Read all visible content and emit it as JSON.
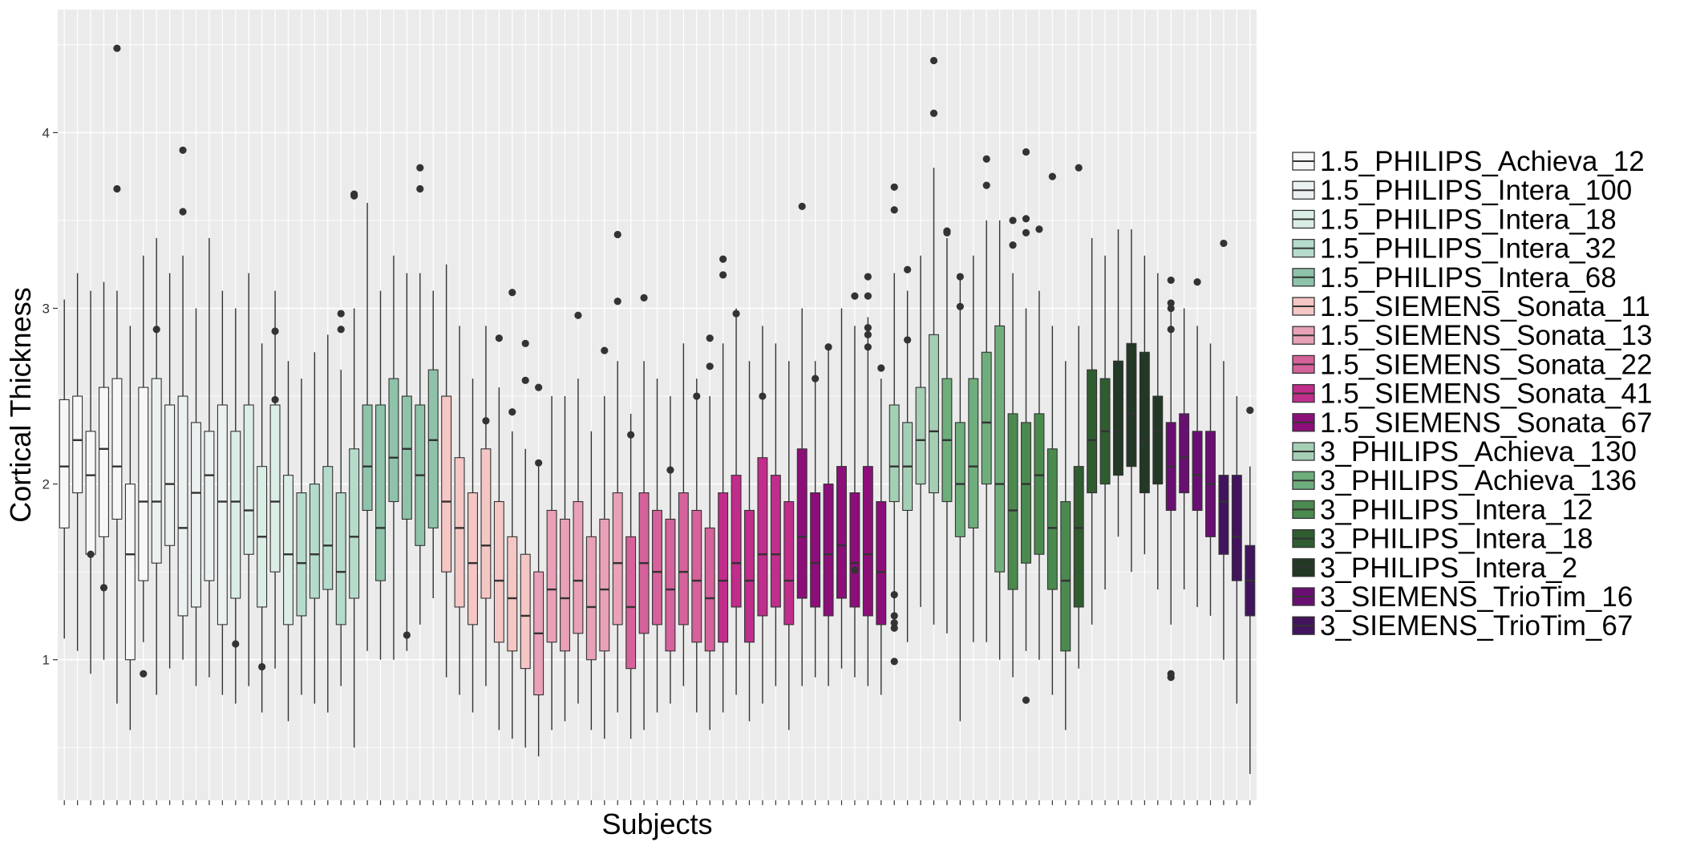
{
  "chart_data": {
    "type": "boxplot",
    "title": "",
    "xlabel": "Subjects",
    "ylabel": "Cortical Thickness",
    "ylim": [
      0.2,
      4.7
    ],
    "yticks": [
      1,
      2,
      3,
      4
    ],
    "x_tick_labels_shown": false,
    "grid": true,
    "legend_position": "right",
    "series": [
      {
        "name": "1.5_PHILIPS_Achieva_12",
        "color": "#f7f7f7",
        "boxes": [
          {
            "lo": 1.12,
            "q1": 1.75,
            "med": 2.1,
            "q3": 2.48,
            "hi": 3.05
          },
          {
            "lo": 1.05,
            "q1": 1.95,
            "med": 2.25,
            "q3": 2.5,
            "hi": 3.2
          },
          {
            "lo": 0.92,
            "q1": 1.6,
            "med": 2.05,
            "q3": 2.3,
            "hi": 3.1,
            "outliers": [
              1.6
            ]
          },
          {
            "lo": 1.0,
            "q1": 1.7,
            "med": 2.2,
            "q3": 2.55,
            "hi": 3.15,
            "outliers": [
              1.41
            ]
          },
          {
            "lo": 0.75,
            "q1": 1.8,
            "med": 2.1,
            "q3": 2.6,
            "hi": 3.1,
            "outliers": [
              4.48,
              3.68
            ]
          },
          {
            "lo": 0.6,
            "q1": 1.0,
            "med": 1.6,
            "q3": 2.0,
            "hi": 2.9
          },
          {
            "lo": 1.1,
            "q1": 1.45,
            "med": 1.9,
            "q3": 2.55,
            "hi": 3.3,
            "outliers": [
              0.92
            ]
          }
        ]
      },
      {
        "name": "1.5_PHILIPS_Intera_100",
        "color": "#ebf1f0",
        "boxes": [
          {
            "lo": 0.8,
            "q1": 1.55,
            "med": 1.9,
            "q3": 2.6,
            "hi": 3.4,
            "outliers": [
              2.88
            ]
          },
          {
            "lo": 0.95,
            "q1": 1.65,
            "med": 2.0,
            "q3": 2.45,
            "hi": 3.2
          },
          {
            "lo": 1.0,
            "q1": 1.25,
            "med": 1.75,
            "q3": 2.5,
            "hi": 3.3,
            "outliers": [
              3.9,
              3.55
            ]
          },
          {
            "lo": 0.85,
            "q1": 1.3,
            "med": 1.95,
            "q3": 2.35,
            "hi": 3.0
          },
          {
            "lo": 0.9,
            "q1": 1.45,
            "med": 2.05,
            "q3": 2.3,
            "hi": 3.4
          },
          {
            "lo": 0.8,
            "q1": 1.2,
            "med": 1.9,
            "q3": 2.45,
            "hi": 3.1
          }
        ]
      },
      {
        "name": "1.5_PHILIPS_Intera_18",
        "color": "#dbeee6",
        "boxes": [
          {
            "lo": 0.75,
            "q1": 1.35,
            "med": 1.9,
            "q3": 2.3,
            "hi": 3.0,
            "outliers": [
              1.09
            ]
          },
          {
            "lo": 0.85,
            "q1": 1.6,
            "med": 1.85,
            "q3": 2.45,
            "hi": 3.2
          },
          {
            "lo": 0.7,
            "q1": 1.3,
            "med": 1.7,
            "q3": 2.1,
            "hi": 2.8,
            "outliers": [
              0.96
            ]
          },
          {
            "lo": 0.95,
            "q1": 1.5,
            "med": 1.9,
            "q3": 2.45,
            "hi": 3.1,
            "outliers": [
              2.87,
              2.48
            ]
          },
          {
            "lo": 0.65,
            "q1": 1.2,
            "med": 1.6,
            "q3": 2.05,
            "hi": 2.7
          }
        ]
      },
      {
        "name": "1.5_PHILIPS_Intera_32",
        "color": "#b5dbcb",
        "boxes": [
          {
            "lo": 0.8,
            "q1": 1.25,
            "med": 1.55,
            "q3": 1.95,
            "hi": 2.6
          },
          {
            "lo": 0.75,
            "q1": 1.35,
            "med": 1.6,
            "q3": 2.0,
            "hi": 2.75
          },
          {
            "lo": 0.7,
            "q1": 1.4,
            "med": 1.65,
            "q3": 2.1,
            "hi": 2.85
          },
          {
            "lo": 0.85,
            "q1": 1.2,
            "med": 1.5,
            "q3": 1.95,
            "hi": 2.65,
            "outliers": [
              2.97,
              2.88
            ]
          },
          {
            "lo": 0.5,
            "q1": 1.35,
            "med": 1.7,
            "q3": 2.2,
            "hi": 3.0,
            "outliers": [
              3.64,
              3.65
            ]
          }
        ]
      },
      {
        "name": "1.5_PHILIPS_Intera_68",
        "color": "#8ec3a9",
        "boxes": [
          {
            "lo": 1.05,
            "q1": 1.85,
            "med": 2.1,
            "q3": 2.45,
            "hi": 3.6
          },
          {
            "lo": 1.0,
            "q1": 1.45,
            "med": 1.75,
            "q3": 2.45,
            "hi": 3.1
          },
          {
            "lo": 1.0,
            "q1": 1.9,
            "med": 2.15,
            "q3": 2.6,
            "hi": 3.3
          },
          {
            "lo": 1.05,
            "q1": 1.8,
            "med": 2.2,
            "q3": 2.5,
            "hi": 3.2,
            "outliers": [
              1.14
            ]
          },
          {
            "lo": 1.2,
            "q1": 1.65,
            "med": 2.05,
            "q3": 2.45,
            "hi": 3.2,
            "outliers": [
              3.8,
              3.68
            ]
          },
          {
            "lo": 1.35,
            "q1": 1.75,
            "med": 2.25,
            "q3": 2.65,
            "hi": 3.1
          }
        ]
      },
      {
        "name": "1.5_SIEMENS_Sonata_11",
        "color": "#f4c6c4",
        "boxes": [
          {
            "lo": 0.9,
            "q1": 1.5,
            "med": 1.9,
            "q3": 2.5,
            "hi": 3.25
          },
          {
            "lo": 0.8,
            "q1": 1.3,
            "med": 1.75,
            "q3": 2.15,
            "hi": 2.9
          },
          {
            "lo": 0.7,
            "q1": 1.2,
            "med": 1.55,
            "q3": 1.95,
            "hi": 2.6
          },
          {
            "lo": 0.85,
            "q1": 1.35,
            "med": 1.65,
            "q3": 2.2,
            "hi": 2.9,
            "outliers": [
              2.36
            ]
          },
          {
            "lo": 0.6,
            "q1": 1.1,
            "med": 1.45,
            "q3": 1.9,
            "hi": 2.55,
            "outliers": [
              2.83
            ]
          },
          {
            "lo": 0.55,
            "q1": 1.05,
            "med": 1.35,
            "q3": 1.7,
            "hi": 2.3,
            "outliers": [
              3.09,
              2.41
            ]
          },
          {
            "lo": 0.5,
            "q1": 0.95,
            "med": 1.25,
            "q3": 1.6,
            "hi": 2.2,
            "outliers": [
              2.8,
              2.59
            ]
          }
        ]
      },
      {
        "name": "1.5_SIEMENS_Sonata_13",
        "color": "#e8a1b6",
        "boxes": [
          {
            "lo": 0.45,
            "q1": 0.8,
            "med": 1.15,
            "q3": 1.5,
            "hi": 2.1,
            "outliers": [
              2.55,
              2.12
            ]
          },
          {
            "lo": 0.6,
            "q1": 1.1,
            "med": 1.4,
            "q3": 1.85,
            "hi": 2.5
          },
          {
            "lo": 0.65,
            "q1": 1.05,
            "med": 1.35,
            "q3": 1.8,
            "hi": 2.5
          },
          {
            "lo": 0.75,
            "q1": 1.15,
            "med": 1.45,
            "q3": 1.9,
            "hi": 2.6,
            "outliers": [
              2.96
            ]
          },
          {
            "lo": 0.6,
            "q1": 1.0,
            "med": 1.3,
            "q3": 1.7,
            "hi": 2.3
          },
          {
            "lo": 0.55,
            "q1": 1.05,
            "med": 1.4,
            "q3": 1.8,
            "hi": 2.5,
            "outliers": [
              2.76
            ]
          },
          {
            "lo": 0.7,
            "q1": 1.2,
            "med": 1.55,
            "q3": 1.95,
            "hi": 2.7,
            "outliers": [
              3.42,
              3.04
            ]
          }
        ]
      },
      {
        "name": "1.5_SIEMENS_Sonata_22",
        "color": "#d5629a",
        "boxes": [
          {
            "lo": 0.55,
            "q1": 0.95,
            "med": 1.3,
            "q3": 1.7,
            "hi": 2.4,
            "outliers": [
              2.28
            ]
          },
          {
            "lo": 0.6,
            "q1": 1.15,
            "med": 1.55,
            "q3": 1.95,
            "hi": 2.7,
            "outliers": [
              3.06
            ]
          },
          {
            "lo": 0.7,
            "q1": 1.2,
            "med": 1.5,
            "q3": 1.85,
            "hi": 2.6
          },
          {
            "lo": 0.75,
            "q1": 1.05,
            "med": 1.4,
            "q3": 1.8,
            "hi": 2.5,
            "outliers": [
              2.08
            ]
          },
          {
            "lo": 0.85,
            "q1": 1.2,
            "med": 1.5,
            "q3": 1.95,
            "hi": 2.8
          },
          {
            "lo": 0.7,
            "q1": 1.1,
            "med": 1.45,
            "q3": 1.85,
            "hi": 2.6,
            "outliers": [
              2.5
            ]
          },
          {
            "lo": 0.6,
            "q1": 1.05,
            "med": 1.35,
            "q3": 1.75,
            "hi": 2.5,
            "outliers": [
              2.83,
              2.67
            ]
          }
        ]
      },
      {
        "name": "1.5_SIEMENS_Sonata_41",
        "color": "#c02d8b",
        "boxes": [
          {
            "lo": 0.7,
            "q1": 1.1,
            "med": 1.45,
            "q3": 1.95,
            "hi": 2.8,
            "outliers": [
              3.28,
              3.19
            ]
          },
          {
            "lo": 0.8,
            "q1": 1.3,
            "med": 1.55,
            "q3": 2.05,
            "hi": 3.0,
            "outliers": [
              2.97
            ]
          },
          {
            "lo": 0.65,
            "q1": 1.1,
            "med": 1.45,
            "q3": 1.85,
            "hi": 2.7
          },
          {
            "lo": 0.75,
            "q1": 1.25,
            "med": 1.6,
            "q3": 2.15,
            "hi": 2.9,
            "outliers": [
              2.5
            ]
          },
          {
            "lo": 0.85,
            "q1": 1.3,
            "med": 1.6,
            "q3": 2.05,
            "hi": 2.8
          },
          {
            "lo": 0.6,
            "q1": 1.2,
            "med": 1.45,
            "q3": 1.9,
            "hi": 2.7
          }
        ]
      },
      {
        "name": "1.5_SIEMENS_Sonata_67",
        "color": "#8c0f79",
        "boxes": [
          {
            "lo": 0.85,
            "q1": 1.35,
            "med": 1.7,
            "q3": 2.2,
            "hi": 3.0,
            "outliers": [
              3.58
            ]
          },
          {
            "lo": 0.9,
            "q1": 1.3,
            "med": 1.55,
            "q3": 1.95,
            "hi": 2.7,
            "outliers": [
              2.6
            ]
          },
          {
            "lo": 0.85,
            "q1": 1.25,
            "med": 1.6,
            "q3": 2.0,
            "hi": 2.8,
            "outliers": [
              2.78
            ]
          },
          {
            "lo": 0.95,
            "q1": 1.35,
            "med": 1.65,
            "q3": 2.1,
            "hi": 3.0
          },
          {
            "lo": 0.9,
            "q1": 1.3,
            "med": 1.55,
            "q3": 1.95,
            "hi": 2.9,
            "outliers": [
              3.07,
              1.51
            ]
          },
          {
            "lo": 0.85,
            "q1": 1.25,
            "med": 1.6,
            "q3": 2.1,
            "hi": 2.95,
            "outliers": [
              3.18,
              3.07,
              2.89,
              2.85,
              2.78
            ]
          },
          {
            "lo": 0.8,
            "q1": 1.2,
            "med": 1.5,
            "q3": 1.9,
            "hi": 2.6,
            "outliers": [
              2.66
            ]
          }
        ]
      },
      {
        "name": "3_PHILIPS_Achieva_130",
        "color": "#a4cfb4",
        "boxes": [
          {
            "lo": 1.25,
            "q1": 1.9,
            "med": 2.1,
            "q3": 2.45,
            "hi": 3.2,
            "outliers": [
              3.69,
              3.56,
              1.37,
              1.25,
              1.21,
              1.18,
              0.99
            ]
          },
          {
            "lo": 1.1,
            "q1": 1.85,
            "med": 2.1,
            "q3": 2.35,
            "hi": 3.1,
            "outliers": [
              2.82,
              3.22
            ]
          },
          {
            "lo": 1.3,
            "q1": 2.0,
            "med": 2.25,
            "q3": 2.55,
            "hi": 3.3
          },
          {
            "lo": 1.2,
            "q1": 1.95,
            "med": 2.3,
            "q3": 2.85,
            "hi": 3.8,
            "outliers": [
              4.41,
              4.11
            ]
          }
        ]
      },
      {
        "name": "3_PHILIPS_Achieva_136",
        "color": "#6eae7c",
        "boxes": [
          {
            "lo": 1.15,
            "q1": 1.9,
            "med": 2.25,
            "q3": 2.6,
            "hi": 3.4,
            "outliers": [
              3.44,
              3.43
            ]
          },
          {
            "lo": 0.65,
            "q1": 1.7,
            "med": 2.0,
            "q3": 2.35,
            "hi": 3.2,
            "outliers": [
              3.18,
              3.01
            ]
          },
          {
            "lo": 1.1,
            "q1": 1.75,
            "med": 2.1,
            "q3": 2.6,
            "hi": 3.3
          },
          {
            "lo": 1.1,
            "q1": 2.0,
            "med": 2.35,
            "q3": 2.75,
            "hi": 3.5,
            "outliers": [
              3.85,
              3.7
            ]
          },
          {
            "lo": 1.0,
            "q1": 1.5,
            "med": 2.0,
            "q3": 2.9,
            "hi": 3.5
          }
        ]
      },
      {
        "name": "3_PHILIPS_Intera_12",
        "color": "#4b8a4f",
        "boxes": [
          {
            "lo": 0.9,
            "q1": 1.4,
            "med": 1.85,
            "q3": 2.4,
            "hi": 3.2,
            "outliers": [
              3.5,
              3.36
            ]
          },
          {
            "lo": 1.05,
            "q1": 1.55,
            "med": 2.0,
            "q3": 2.35,
            "hi": 3.0,
            "outliers": [
              3.89,
              3.51,
              3.43,
              0.77
            ]
          },
          {
            "lo": 1.0,
            "q1": 1.6,
            "med": 2.05,
            "q3": 2.4,
            "hi": 3.1,
            "outliers": [
              3.45
            ]
          },
          {
            "lo": 0.8,
            "q1": 1.4,
            "med": 1.75,
            "q3": 2.2,
            "hi": 2.9,
            "outliers": [
              3.75
            ]
          },
          {
            "lo": 0.6,
            "q1": 1.05,
            "med": 1.45,
            "q3": 1.9,
            "hi": 2.7
          }
        ]
      },
      {
        "name": "3_PHILIPS_Intera_18",
        "color": "#2f5d30",
        "boxes": [
          {
            "lo": 0.95,
            "q1": 1.3,
            "med": 1.75,
            "q3": 2.1,
            "hi": 2.9,
            "outliers": [
              3.8
            ]
          },
          {
            "lo": 1.2,
            "q1": 1.95,
            "med": 2.25,
            "q3": 2.65,
            "hi": 3.4
          },
          {
            "lo": 1.4,
            "q1": 2.0,
            "med": 2.3,
            "q3": 2.6,
            "hi": 3.3
          }
        ]
      },
      {
        "name": "3_PHILIPS_Intera_2",
        "color": "#233825",
        "boxes": [
          {
            "lo": 1.7,
            "q1": 2.05,
            "med": 2.3,
            "q3": 2.7,
            "hi": 3.45
          },
          {
            "lo": 1.5,
            "q1": 2.1,
            "med": 2.4,
            "q3": 2.8,
            "hi": 3.45
          },
          {
            "lo": 1.6,
            "q1": 1.95,
            "med": 2.25,
            "q3": 2.75,
            "hi": 3.3
          },
          {
            "lo": 1.4,
            "q1": 2.0,
            "med": 2.3,
            "q3": 2.5,
            "hi": 3.2
          }
        ]
      },
      {
        "name": "3_SIEMENS_TrioTim_16",
        "color": "#6a0f72",
        "boxes": [
          {
            "lo": 1.2,
            "q1": 1.85,
            "med": 2.1,
            "q3": 2.35,
            "hi": 3.0,
            "outliers": [
              3.16,
              3.03,
              3.0,
              2.88,
              0.92,
              0.9
            ]
          },
          {
            "lo": 1.4,
            "q1": 1.95,
            "med": 2.15,
            "q3": 2.4,
            "hi": 3.0
          },
          {
            "lo": 1.3,
            "q1": 1.85,
            "med": 2.05,
            "q3": 2.3,
            "hi": 2.9,
            "outliers": [
              3.15
            ]
          },
          {
            "lo": 1.25,
            "q1": 1.7,
            "med": 2.0,
            "q3": 2.3,
            "hi": 2.8
          }
        ]
      },
      {
        "name": "3_SIEMENS_TrioTim_67",
        "color": "#43145e",
        "boxes": [
          {
            "lo": 1.0,
            "q1": 1.6,
            "med": 1.9,
            "q3": 2.05,
            "hi": 2.7,
            "outliers": [
              3.37
            ]
          },
          {
            "lo": 0.75,
            "q1": 1.45,
            "med": 1.7,
            "q3": 2.05,
            "hi": 2.5
          },
          {
            "lo": 0.35,
            "q1": 1.25,
            "med": 1.45,
            "q3": 1.65,
            "hi": 2.1,
            "outliers": [
              2.42
            ]
          }
        ]
      }
    ]
  }
}
